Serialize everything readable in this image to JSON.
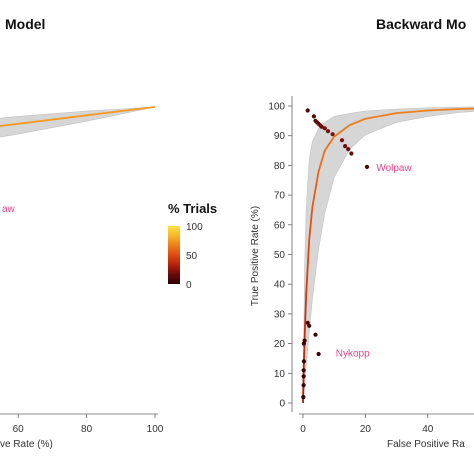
{
  "colors": {
    "band": "#d6d6d6",
    "band_stroke": "#c2c2c2",
    "annotation": "#e04a8a",
    "axis": "#666666"
  },
  "chart_data": [
    {
      "type": "line",
      "title": "Model",
      "xlabel": "ve Rate (%)",
      "xticks": [
        60,
        80,
        100
      ],
      "xlim": [
        0,
        100
      ],
      "ylim": [
        0,
        100
      ],
      "curve": {
        "x": [
          0,
          20,
          40,
          60,
          80,
          100
        ],
        "y": [
          86,
          88.7,
          91.5,
          94.3,
          97.2,
          100
        ]
      },
      "band": {
        "x": [
          0,
          20,
          40,
          60,
          80,
          100
        ],
        "upper": [
          90,
          92,
          94.5,
          96.8,
          98.6,
          100
        ],
        "lower": [
          81,
          83.7,
          87,
          90.8,
          95.2,
          100
        ]
      },
      "annotations": [
        {
          "text": "aw",
          "x": 0,
          "y": 52
        }
      ]
    },
    {
      "type": "scatter",
      "title": "Backward Mo",
      "xlabel": "False Positive Ra",
      "ylabel": "True Positive Rate (%)",
      "xticks": [
        0,
        20,
        40
      ],
      "yticks": [
        0,
        10,
        20,
        30,
        40,
        50,
        60,
        70,
        80,
        90,
        100
      ],
      "xlim": [
        -5,
        61
      ],
      "ylim": [
        -3,
        102
      ],
      "curve": {
        "x": [
          0,
          0.2,
          0.5,
          1,
          2,
          3,
          5,
          7,
          10,
          15,
          20,
          30,
          40,
          50,
          61
        ],
        "y": [
          0,
          10,
          22,
          36,
          55,
          66,
          78,
          85,
          89.7,
          93.6,
          95.7,
          97.6,
          98.5,
          99,
          99.3
        ]
      },
      "band": {
        "x": [
          0,
          0.5,
          1,
          2,
          3,
          5,
          7,
          10,
          15,
          20,
          30,
          40,
          50,
          61
        ],
        "upper": [
          0,
          45,
          65,
          82,
          88,
          92.5,
          94.5,
          96.5,
          97.5,
          98.3,
          99,
          99.4,
          99.6,
          99.8
        ],
        "lower": [
          0,
          5,
          12,
          24,
          35,
          52,
          64,
          76,
          85.5,
          90.3,
          94.5,
          96.5,
          97.8,
          98.6
        ]
      },
      "points": [
        {
          "x": 1.5,
          "y": 98.5,
          "t": 10
        },
        {
          "x": 3.5,
          "y": 96.5,
          "t": 12
        },
        {
          "x": 4,
          "y": 95,
          "t": 12
        },
        {
          "x": 4.5,
          "y": 94.5,
          "t": 15
        },
        {
          "x": 5,
          "y": 94,
          "t": 15
        },
        {
          "x": 5.5,
          "y": 93.5,
          "t": 18
        },
        {
          "x": 6,
          "y": 93,
          "t": 18
        },
        {
          "x": 7,
          "y": 92.5,
          "t": 20
        },
        {
          "x": 8,
          "y": 91.5,
          "t": 20
        },
        {
          "x": 9.5,
          "y": 90.5,
          "t": 22
        },
        {
          "x": 12.5,
          "y": 88.5,
          "t": 20
        },
        {
          "x": 13.5,
          "y": 86.5,
          "t": 18
        },
        {
          "x": 14.5,
          "y": 85.5,
          "t": 18
        },
        {
          "x": 15.5,
          "y": 84,
          "t": 15
        },
        {
          "x": 20.5,
          "y": 79.5,
          "t": 10
        },
        {
          "x": 1.5,
          "y": 27,
          "t": 8
        },
        {
          "x": 2,
          "y": 26,
          "t": 8
        },
        {
          "x": 4,
          "y": 23,
          "t": 6
        },
        {
          "x": 0.5,
          "y": 21,
          "t": 5
        },
        {
          "x": 0.3,
          "y": 20,
          "t": 5
        },
        {
          "x": 5,
          "y": 16.5,
          "t": 5
        },
        {
          "x": 0.3,
          "y": 14,
          "t": 4
        },
        {
          "x": 0.2,
          "y": 11,
          "t": 4
        },
        {
          "x": 0.2,
          "y": 9,
          "t": 3
        },
        {
          "x": 0.2,
          "y": 6,
          "t": 3
        },
        {
          "x": 0.1,
          "y": 2,
          "t": 2
        }
      ],
      "annotations": [
        {
          "text": "Wolpaw",
          "x": 23.5,
          "y": 79.5
        },
        {
          "text": "Nykopp",
          "x": 10.5,
          "y": 17
        }
      ]
    }
  ],
  "colorbar": {
    "title": "% Trials",
    "ticks": [
      0,
      50,
      100
    ],
    "colors": [
      "#2a0000",
      "#6a0a0a",
      "#b8200c",
      "#e04a12",
      "#f07d1a",
      "#f7b62a",
      "#fde34a"
    ]
  }
}
